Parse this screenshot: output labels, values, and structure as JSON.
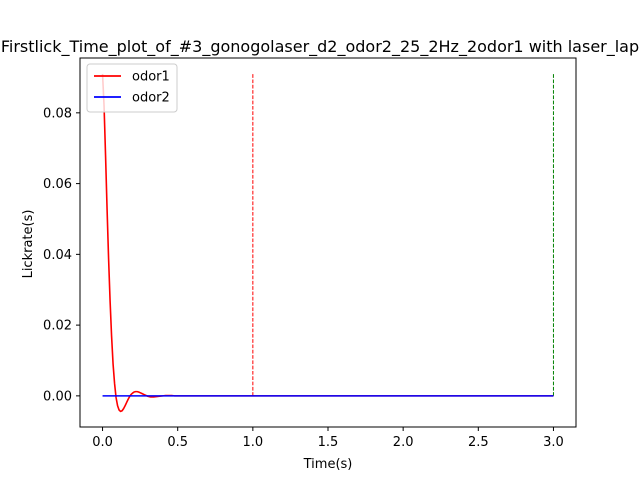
{
  "chart_data": {
    "type": "line",
    "title": "Firstlick_Time_plot_of_#3_gonogolaser_d2_odor2_25_2Hz_2odor1 with laser_lap",
    "xlabel": "Time(s)",
    "ylabel": "Lickrate(s)",
    "xlim": [
      -0.15,
      3.15
    ],
    "ylim": [
      -0.0088,
      0.0955
    ],
    "x_ticks": [
      {
        "value": 0.0,
        "label": "0.0"
      },
      {
        "value": 0.5,
        "label": "0.5"
      },
      {
        "value": 1.0,
        "label": "1.0"
      },
      {
        "value": 1.5,
        "label": "1.5"
      },
      {
        "value": 2.0,
        "label": "2.0"
      },
      {
        "value": 2.5,
        "label": "2.5"
      },
      {
        "value": 3.0,
        "label": "3.0"
      }
    ],
    "y_ticks": [
      {
        "value": 0.0,
        "label": "0.00"
      },
      {
        "value": 0.02,
        "label": "0.02"
      },
      {
        "value": 0.04,
        "label": "0.04"
      },
      {
        "value": 0.06,
        "label": "0.06"
      },
      {
        "value": 0.08,
        "label": "0.08"
      }
    ],
    "grid": false,
    "legend_position": "top-left",
    "series": [
      {
        "name": "odor1",
        "color": "#ff0000",
        "x": [
          0.0,
          0.01,
          0.02,
          0.03,
          0.04,
          0.05,
          0.06,
          0.07,
          0.08,
          0.09,
          0.1,
          0.11,
          0.12,
          0.13,
          0.14,
          0.15,
          0.16,
          0.17,
          0.18,
          0.19,
          0.2,
          0.21,
          0.22,
          0.23,
          0.24,
          0.25,
          0.26,
          0.27,
          0.28,
          0.29,
          0.3,
          0.32,
          0.34,
          0.36,
          0.38,
          0.4,
          0.42,
          0.44,
          0.46,
          0.48,
          0.5,
          0.55,
          0.6,
          0.7,
          0.8,
          1.0,
          1.5,
          2.0,
          2.5,
          3.0
        ],
        "y": [
          0.091,
          0.082,
          0.068,
          0.053,
          0.039,
          0.027,
          0.017,
          0.009,
          0.0035,
          -0.0005,
          -0.0028,
          -0.004,
          -0.0044,
          -0.0042,
          -0.0036,
          -0.0028,
          -0.0019,
          -0.001,
          -0.0002,
          0.0004,
          0.0008,
          0.0011,
          0.0012,
          0.0012,
          0.0011,
          0.0009,
          0.0007,
          0.0005,
          0.0003,
          0.0001,
          -0.0001,
          -0.0003,
          -0.0003,
          -0.0002,
          -0.0001,
          0.0,
          0.0001,
          0.0001,
          0.0001,
          0.0,
          0.0,
          0.0,
          0.0,
          0.0,
          0.0,
          0.0,
          0.0,
          0.0,
          0.0,
          0.0
        ]
      },
      {
        "name": "odor2",
        "color": "#0000ff",
        "x": [
          0.0,
          0.5,
          1.0,
          1.5,
          2.0,
          2.5,
          3.0
        ],
        "y": [
          0.0,
          0.0,
          0.0,
          0.0,
          0.0,
          0.0,
          0.0
        ]
      }
    ],
    "vlines": [
      {
        "x": 1.0,
        "y_from": 0.0,
        "y_to": 0.091,
        "color": "#ff0000",
        "style": "dashed"
      },
      {
        "x": 3.0,
        "y_from": 0.0,
        "y_to": 0.091,
        "color": "#008000",
        "style": "dashed"
      }
    ]
  }
}
